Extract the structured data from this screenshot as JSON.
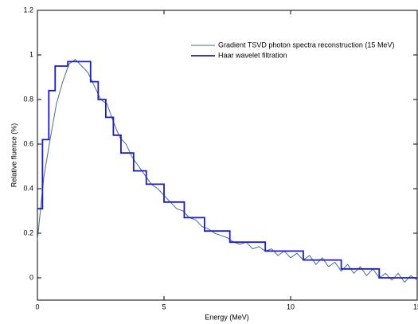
{
  "chart_data": {
    "type": "line",
    "xlabel": "Energy (MeV)",
    "ylabel": "Relative fluence (%)",
    "xlim": [
      0,
      15
    ],
    "xticks": [
      0,
      5,
      10,
      15
    ],
    "ylim": [
      -0.1,
      1.2
    ],
    "yticks": [
      0,
      0.2,
      0.4,
      0.6,
      0.8,
      1,
      1.2
    ],
    "legend": "upper right",
    "series": [
      {
        "name": "Gradient TSVD photon spectra reconstruction (15 MeV)",
        "color": "#4a6a8c",
        "x": [
          0,
          0.25,
          0.5,
          0.75,
          1,
          1.25,
          1.5,
          1.75,
          2,
          2.25,
          2.5,
          2.75,
          3,
          3.25,
          3.5,
          3.75,
          4,
          4.25,
          4.5,
          4.75,
          5,
          5.25,
          5.5,
          5.75,
          6,
          6.25,
          6.5,
          6.75,
          7,
          7.25,
          7.5,
          7.75,
          8,
          8.25,
          8.5,
          8.75,
          9,
          9.25,
          9.5,
          9.75,
          10,
          10.25,
          10.5,
          10.75,
          11,
          11.25,
          11.5,
          11.75,
          12,
          12.25,
          12.5,
          12.75,
          13,
          13.25,
          13.5,
          13.75,
          14,
          14.25,
          14.5,
          14.75,
          15
        ],
        "values": [
          0.17,
          0.45,
          0.62,
          0.78,
          0.88,
          0.96,
          0.98,
          0.95,
          0.92,
          0.86,
          0.8,
          0.78,
          0.7,
          0.63,
          0.6,
          0.54,
          0.5,
          0.46,
          0.42,
          0.4,
          0.37,
          0.34,
          0.31,
          0.3,
          0.27,
          0.26,
          0.23,
          0.22,
          0.2,
          0.19,
          0.18,
          0.16,
          0.15,
          0.16,
          0.13,
          0.14,
          0.12,
          0.13,
          0.1,
          0.12,
          0.09,
          0.11,
          0.08,
          0.1,
          0.06,
          0.09,
          0.05,
          0.07,
          0.03,
          0.06,
          0.02,
          0.05,
          0.01,
          0.04,
          0,
          0.02,
          -0.01,
          0.02,
          -0.02,
          0.01,
          -0.01
        ]
      },
      {
        "name": "Haar wavelet filtration",
        "color": "#1a1acc",
        "x": [
          0,
          0.2,
          0.2,
          0.45,
          0.45,
          0.7,
          0.7,
          1.2,
          1.2,
          2.1,
          2.1,
          2.4,
          2.4,
          2.7,
          2.7,
          3,
          3,
          3.3,
          3.3,
          3.8,
          3.8,
          4.3,
          4.3,
          5,
          5,
          5.8,
          5.8,
          6.6,
          6.6,
          7.6,
          7.6,
          9,
          9,
          10.5,
          10.5,
          12,
          12,
          13.5,
          13.5,
          15
        ],
        "values": [
          0.31,
          0.31,
          0.62,
          0.62,
          0.84,
          0.84,
          0.95,
          0.95,
          0.97,
          0.97,
          0.88,
          0.88,
          0.8,
          0.8,
          0.72,
          0.72,
          0.64,
          0.64,
          0.56,
          0.56,
          0.48,
          0.48,
          0.42,
          0.42,
          0.34,
          0.34,
          0.27,
          0.27,
          0.21,
          0.21,
          0.16,
          0.16,
          0.12,
          0.12,
          0.08,
          0.08,
          0.04,
          0.04,
          0,
          0
        ]
      }
    ]
  }
}
